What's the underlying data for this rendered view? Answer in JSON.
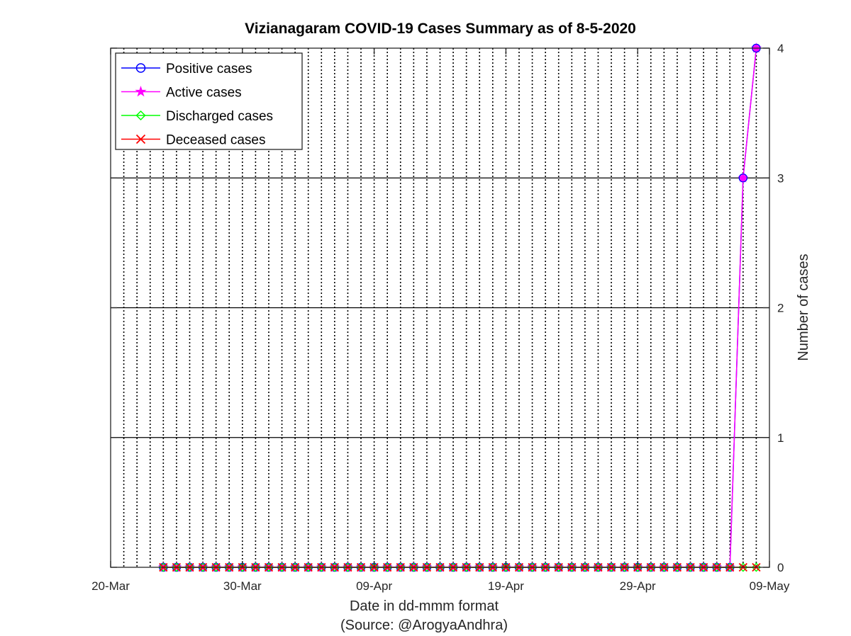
{
  "chart_data": {
    "type": "line",
    "title": "Vizianagaram COVID-19 Cases Summary as of 8-5-2020",
    "xlabel": "Date in dd-mmm format",
    "xlabel_source": "(Source: @ArogyaAndhra)",
    "ylabel": "Number of cases",
    "x_tick_labels": [
      "20-Mar",
      "30-Mar",
      "09-Apr",
      "19-Apr",
      "29-Apr",
      "09-May"
    ],
    "x_tick_dates": [
      "2020-03-20",
      "2020-03-30",
      "2020-04-09",
      "2020-04-19",
      "2020-04-29",
      "2020-05-09"
    ],
    "xlim": [
      "2020-03-20",
      "2020-05-09"
    ],
    "ylim": [
      0,
      4
    ],
    "y_ticks": [
      0,
      1,
      2,
      3,
      4
    ],
    "y_axis_side": "right",
    "grid": "on (dotted vertical daily lines, solid horizontal lines)",
    "legend_location": "top-left",
    "x": [
      "2020-03-24",
      "2020-03-25",
      "2020-03-26",
      "2020-03-27",
      "2020-03-28",
      "2020-03-29",
      "2020-03-30",
      "2020-03-31",
      "2020-04-01",
      "2020-04-02",
      "2020-04-03",
      "2020-04-04",
      "2020-04-05",
      "2020-04-06",
      "2020-04-07",
      "2020-04-08",
      "2020-04-09",
      "2020-04-10",
      "2020-04-11",
      "2020-04-12",
      "2020-04-13",
      "2020-04-14",
      "2020-04-15",
      "2020-04-16",
      "2020-04-17",
      "2020-04-18",
      "2020-04-19",
      "2020-04-20",
      "2020-04-21",
      "2020-04-22",
      "2020-04-23",
      "2020-04-24",
      "2020-04-25",
      "2020-04-26",
      "2020-04-27",
      "2020-04-28",
      "2020-04-29",
      "2020-04-30",
      "2020-05-01",
      "2020-05-02",
      "2020-05-03",
      "2020-05-04",
      "2020-05-05",
      "2020-05-06",
      "2020-05-07",
      "2020-05-08"
    ],
    "series": [
      {
        "name": "Positive cases",
        "color": "#0000ff",
        "marker": "circle",
        "values": [
          0,
          0,
          0,
          0,
          0,
          0,
          0,
          0,
          0,
          0,
          0,
          0,
          0,
          0,
          0,
          0,
          0,
          0,
          0,
          0,
          0,
          0,
          0,
          0,
          0,
          0,
          0,
          0,
          0,
          0,
          0,
          0,
          0,
          0,
          0,
          0,
          0,
          0,
          0,
          0,
          0,
          0,
          0,
          0,
          3,
          4
        ]
      },
      {
        "name": "Active cases",
        "color": "#ff00ff",
        "marker": "star",
        "values": [
          0,
          0,
          0,
          0,
          0,
          0,
          0,
          0,
          0,
          0,
          0,
          0,
          0,
          0,
          0,
          0,
          0,
          0,
          0,
          0,
          0,
          0,
          0,
          0,
          0,
          0,
          0,
          0,
          0,
          0,
          0,
          0,
          0,
          0,
          0,
          0,
          0,
          0,
          0,
          0,
          0,
          0,
          0,
          0,
          3,
          4
        ]
      },
      {
        "name": "Discharged cases",
        "color": "#00ff00",
        "marker": "diamond",
        "values": [
          0,
          0,
          0,
          0,
          0,
          0,
          0,
          0,
          0,
          0,
          0,
          0,
          0,
          0,
          0,
          0,
          0,
          0,
          0,
          0,
          0,
          0,
          0,
          0,
          0,
          0,
          0,
          0,
          0,
          0,
          0,
          0,
          0,
          0,
          0,
          0,
          0,
          0,
          0,
          0,
          0,
          0,
          0,
          0,
          0,
          0
        ]
      },
      {
        "name": "Deceased cases",
        "color": "#ff0000",
        "marker": "x",
        "values": [
          0,
          0,
          0,
          0,
          0,
          0,
          0,
          0,
          0,
          0,
          0,
          0,
          0,
          0,
          0,
          0,
          0,
          0,
          0,
          0,
          0,
          0,
          0,
          0,
          0,
          0,
          0,
          0,
          0,
          0,
          0,
          0,
          0,
          0,
          0,
          0,
          0,
          0,
          0,
          0,
          0,
          0,
          0,
          0,
          0,
          0
        ]
      }
    ]
  }
}
